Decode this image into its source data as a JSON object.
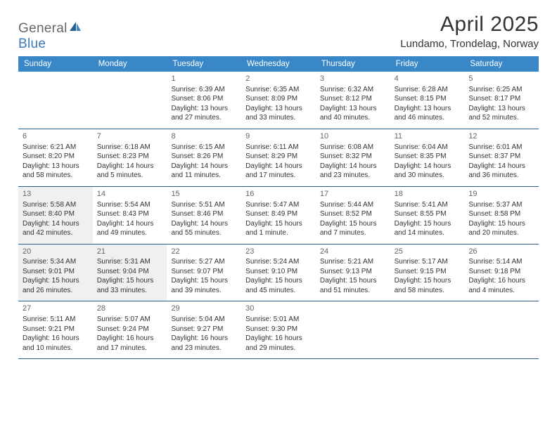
{
  "logo": {
    "general": "General",
    "blue": "Blue"
  },
  "title": {
    "month": "April 2025",
    "location": "Lundamo, Trondelag, Norway"
  },
  "colors": {
    "header_bg": "#3a87c8",
    "header_text": "#ffffff",
    "rule": "#2a5e8e",
    "shade": "#eef0f2",
    "text": "#333333",
    "muted": "#666666"
  },
  "dayNames": [
    "Sunday",
    "Monday",
    "Tuesday",
    "Wednesday",
    "Thursday",
    "Friday",
    "Saturday"
  ],
  "weeks": [
    [
      {
        "empty": true
      },
      {
        "empty": true
      },
      {
        "d": "1",
        "sr": "Sunrise: 6:39 AM",
        "ss": "Sunset: 8:06 PM",
        "dl1": "Daylight: 13 hours",
        "dl2": "and 27 minutes."
      },
      {
        "d": "2",
        "sr": "Sunrise: 6:35 AM",
        "ss": "Sunset: 8:09 PM",
        "dl1": "Daylight: 13 hours",
        "dl2": "and 33 minutes."
      },
      {
        "d": "3",
        "sr": "Sunrise: 6:32 AM",
        "ss": "Sunset: 8:12 PM",
        "dl1": "Daylight: 13 hours",
        "dl2": "and 40 minutes."
      },
      {
        "d": "4",
        "sr": "Sunrise: 6:28 AM",
        "ss": "Sunset: 8:15 PM",
        "dl1": "Daylight: 13 hours",
        "dl2": "and 46 minutes."
      },
      {
        "d": "5",
        "sr": "Sunrise: 6:25 AM",
        "ss": "Sunset: 8:17 PM",
        "dl1": "Daylight: 13 hours",
        "dl2": "and 52 minutes."
      }
    ],
    [
      {
        "d": "6",
        "sr": "Sunrise: 6:21 AM",
        "ss": "Sunset: 8:20 PM",
        "dl1": "Daylight: 13 hours",
        "dl2": "and 58 minutes."
      },
      {
        "d": "7",
        "sr": "Sunrise: 6:18 AM",
        "ss": "Sunset: 8:23 PM",
        "dl1": "Daylight: 14 hours",
        "dl2": "and 5 minutes."
      },
      {
        "d": "8",
        "sr": "Sunrise: 6:15 AM",
        "ss": "Sunset: 8:26 PM",
        "dl1": "Daylight: 14 hours",
        "dl2": "and 11 minutes."
      },
      {
        "d": "9",
        "sr": "Sunrise: 6:11 AM",
        "ss": "Sunset: 8:29 PM",
        "dl1": "Daylight: 14 hours",
        "dl2": "and 17 minutes."
      },
      {
        "d": "10",
        "sr": "Sunrise: 6:08 AM",
        "ss": "Sunset: 8:32 PM",
        "dl1": "Daylight: 14 hours",
        "dl2": "and 23 minutes."
      },
      {
        "d": "11",
        "sr": "Sunrise: 6:04 AM",
        "ss": "Sunset: 8:35 PM",
        "dl1": "Daylight: 14 hours",
        "dl2": "and 30 minutes."
      },
      {
        "d": "12",
        "sr": "Sunrise: 6:01 AM",
        "ss": "Sunset: 8:37 PM",
        "dl1": "Daylight: 14 hours",
        "dl2": "and 36 minutes."
      }
    ],
    [
      {
        "d": "13",
        "shade": true,
        "sr": "Sunrise: 5:58 AM",
        "ss": "Sunset: 8:40 PM",
        "dl1": "Daylight: 14 hours",
        "dl2": "and 42 minutes."
      },
      {
        "d": "14",
        "sr": "Sunrise: 5:54 AM",
        "ss": "Sunset: 8:43 PM",
        "dl1": "Daylight: 14 hours",
        "dl2": "and 49 minutes."
      },
      {
        "d": "15",
        "sr": "Sunrise: 5:51 AM",
        "ss": "Sunset: 8:46 PM",
        "dl1": "Daylight: 14 hours",
        "dl2": "and 55 minutes."
      },
      {
        "d": "16",
        "sr": "Sunrise: 5:47 AM",
        "ss": "Sunset: 8:49 PM",
        "dl1": "Daylight: 15 hours",
        "dl2": "and 1 minute."
      },
      {
        "d": "17",
        "sr": "Sunrise: 5:44 AM",
        "ss": "Sunset: 8:52 PM",
        "dl1": "Daylight: 15 hours",
        "dl2": "and 7 minutes."
      },
      {
        "d": "18",
        "sr": "Sunrise: 5:41 AM",
        "ss": "Sunset: 8:55 PM",
        "dl1": "Daylight: 15 hours",
        "dl2": "and 14 minutes."
      },
      {
        "d": "19",
        "sr": "Sunrise: 5:37 AM",
        "ss": "Sunset: 8:58 PM",
        "dl1": "Daylight: 15 hours",
        "dl2": "and 20 minutes."
      }
    ],
    [
      {
        "d": "20",
        "shade": true,
        "sr": "Sunrise: 5:34 AM",
        "ss": "Sunset: 9:01 PM",
        "dl1": "Daylight: 15 hours",
        "dl2": "and 26 minutes."
      },
      {
        "d": "21",
        "shade": true,
        "sr": "Sunrise: 5:31 AM",
        "ss": "Sunset: 9:04 PM",
        "dl1": "Daylight: 15 hours",
        "dl2": "and 33 minutes."
      },
      {
        "d": "22",
        "sr": "Sunrise: 5:27 AM",
        "ss": "Sunset: 9:07 PM",
        "dl1": "Daylight: 15 hours",
        "dl2": "and 39 minutes."
      },
      {
        "d": "23",
        "sr": "Sunrise: 5:24 AM",
        "ss": "Sunset: 9:10 PM",
        "dl1": "Daylight: 15 hours",
        "dl2": "and 45 minutes."
      },
      {
        "d": "24",
        "sr": "Sunrise: 5:21 AM",
        "ss": "Sunset: 9:13 PM",
        "dl1": "Daylight: 15 hours",
        "dl2": "and 51 minutes."
      },
      {
        "d": "25",
        "sr": "Sunrise: 5:17 AM",
        "ss": "Sunset: 9:15 PM",
        "dl1": "Daylight: 15 hours",
        "dl2": "and 58 minutes."
      },
      {
        "d": "26",
        "sr": "Sunrise: 5:14 AM",
        "ss": "Sunset: 9:18 PM",
        "dl1": "Daylight: 16 hours",
        "dl2": "and 4 minutes."
      }
    ],
    [
      {
        "d": "27",
        "sr": "Sunrise: 5:11 AM",
        "ss": "Sunset: 9:21 PM",
        "dl1": "Daylight: 16 hours",
        "dl2": "and 10 minutes."
      },
      {
        "d": "28",
        "sr": "Sunrise: 5:07 AM",
        "ss": "Sunset: 9:24 PM",
        "dl1": "Daylight: 16 hours",
        "dl2": "and 17 minutes."
      },
      {
        "d": "29",
        "sr": "Sunrise: 5:04 AM",
        "ss": "Sunset: 9:27 PM",
        "dl1": "Daylight: 16 hours",
        "dl2": "and 23 minutes."
      },
      {
        "d": "30",
        "sr": "Sunrise: 5:01 AM",
        "ss": "Sunset: 9:30 PM",
        "dl1": "Daylight: 16 hours",
        "dl2": "and 29 minutes."
      },
      {
        "empty": true
      },
      {
        "empty": true
      },
      {
        "empty": true
      }
    ]
  ]
}
